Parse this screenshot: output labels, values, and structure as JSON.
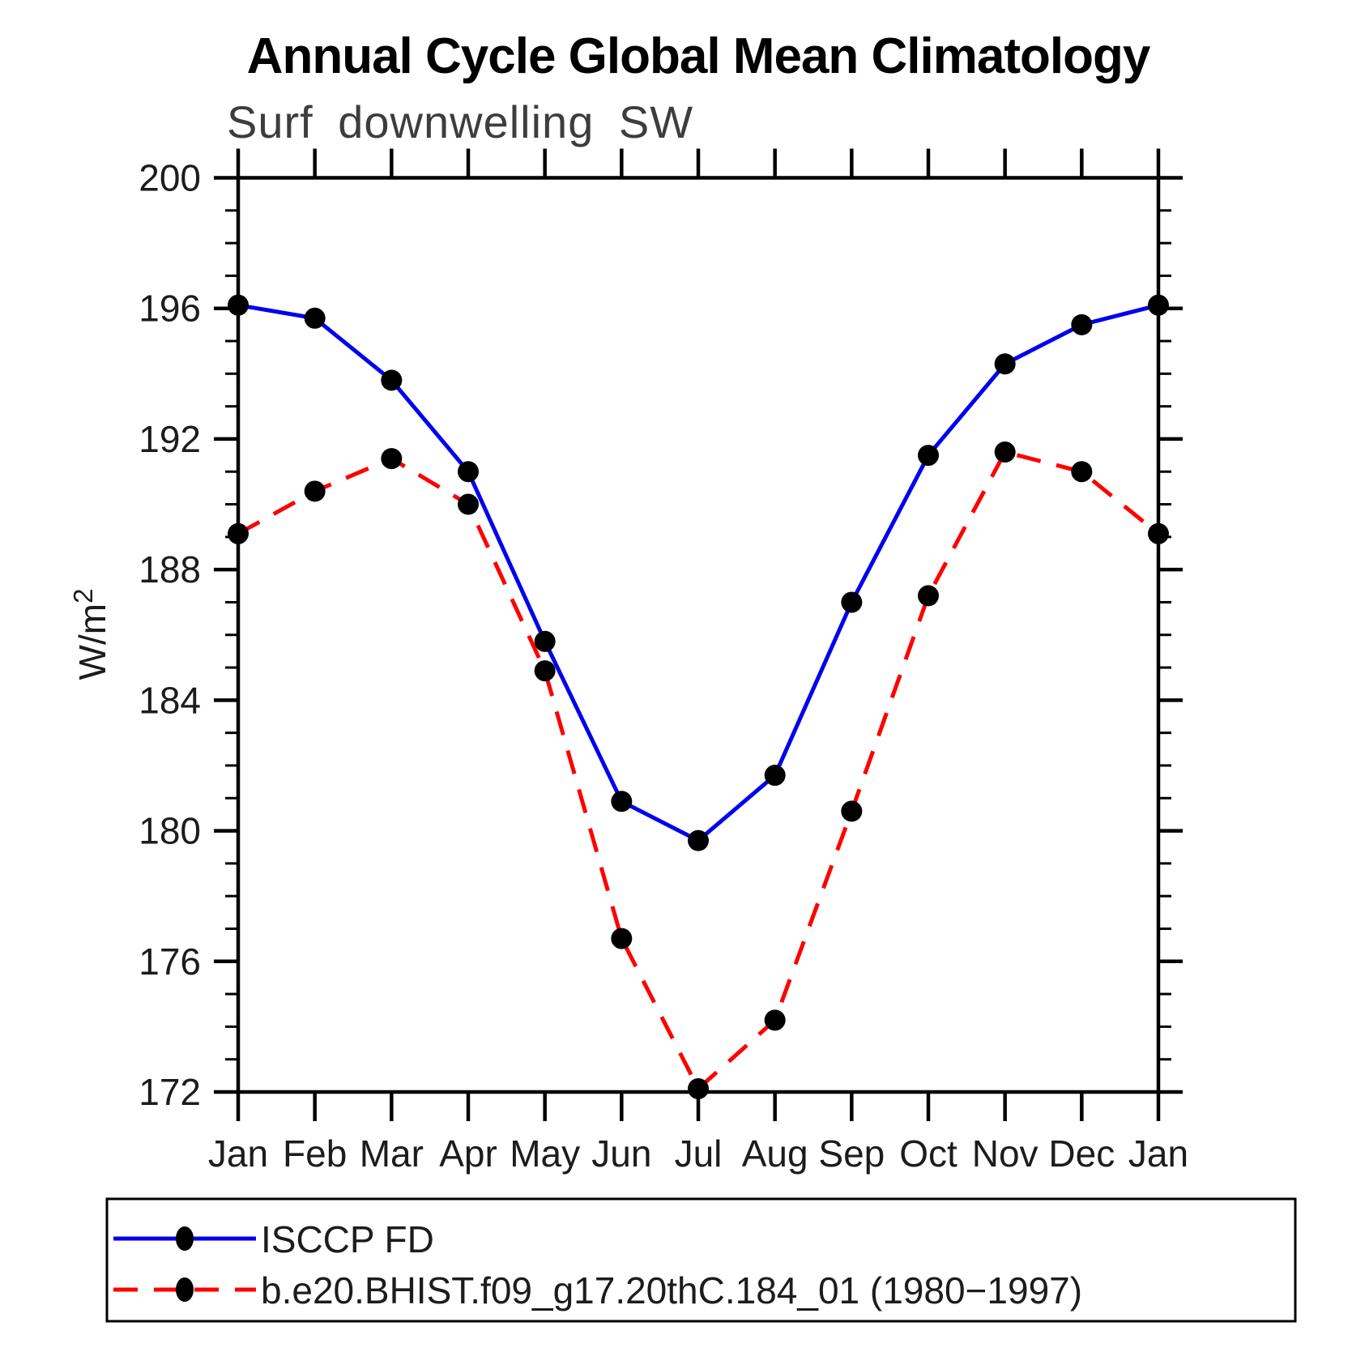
{
  "title": "Annual Cycle Global Mean Climatology",
  "subtitle": "Surf downwelling SW",
  "y_unit": {
    "base": "W/m",
    "sup": "2"
  },
  "axis_color": "#000000",
  "marker_color": "#000000",
  "chart_data": {
    "type": "line",
    "title": "Annual Cycle Global Mean Climatology",
    "subtitle": "Surf downwelling SW",
    "xlabel": "",
    "ylabel": "W/m^2",
    "categories": [
      "Jan",
      "Feb",
      "Mar",
      "Apr",
      "May",
      "Jun",
      "Jul",
      "Aug",
      "Sep",
      "Oct",
      "Nov",
      "Dec",
      "Jan"
    ],
    "ylim": [
      172,
      200
    ],
    "y_major_ticks": [
      200,
      196,
      192,
      188,
      184,
      180,
      176,
      172
    ],
    "y_minor_step": 1,
    "grid": false,
    "legend_position": "bottom-box",
    "series": [
      {
        "name": "ISCCP FD",
        "line_style": "solid",
        "color": "#0000ee",
        "marker": "filled-circle",
        "marker_color": "#000000",
        "values": [
          196.1,
          195.7,
          193.8,
          191.0,
          185.8,
          180.9,
          179.7,
          181.7,
          187.0,
          191.5,
          194.3,
          195.5,
          196.1
        ]
      },
      {
        "name": "b.e20.BHIST.f09_g17.20thC.184_01 (1980−1997)",
        "line_style": "dashed",
        "color": "#ff0000",
        "marker": "filled-circle",
        "marker_color": "#000000",
        "values": [
          189.1,
          190.4,
          191.4,
          190.0,
          184.9,
          176.7,
          172.1,
          174.2,
          180.6,
          187.2,
          191.6,
          191.0,
          189.1
        ]
      }
    ]
  }
}
